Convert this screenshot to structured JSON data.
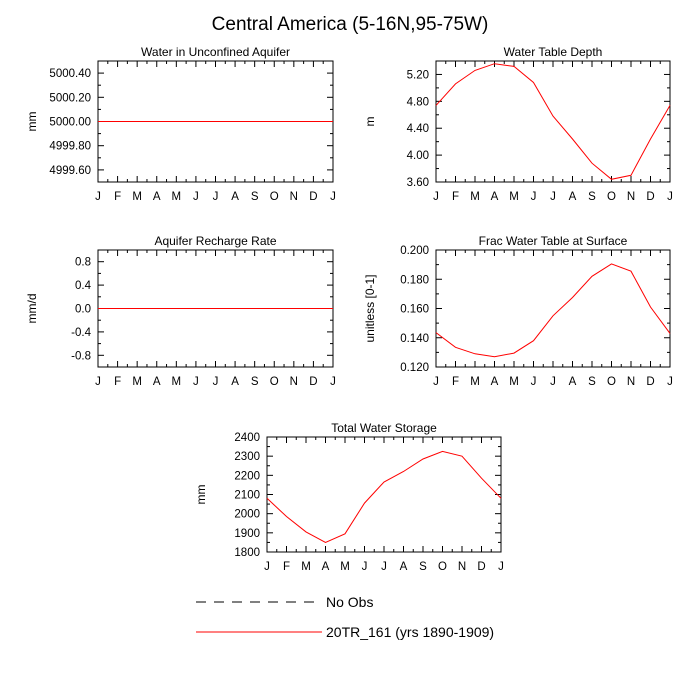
{
  "page_title": "Central America (5-16N,95-75W)",
  "legend": {
    "entries": [
      {
        "label": "No Obs",
        "color": "#000000",
        "style": "dashed"
      },
      {
        "label": "20TR_161 (yrs 1890-1909)",
        "color": "#ff0000",
        "style": "solid"
      }
    ]
  },
  "chart_data": [
    {
      "type": "line",
      "title": "Water in Unconfined Aquifer",
      "ylabel": "mm",
      "xlabel": "",
      "categories": [
        "J",
        "F",
        "M",
        "A",
        "M",
        "J",
        "J",
        "A",
        "S",
        "O",
        "N",
        "D",
        "J"
      ],
      "ylim": [
        4999.5,
        5000.5
      ],
      "yticks": [
        4999.6,
        4999.8,
        5000.0,
        5000.2,
        5000.4
      ],
      "ytick_labels": [
        "4999.60",
        "4999.80",
        "5000.00",
        "5000.20",
        "5000.40"
      ],
      "series": [
        {
          "name": "20TR_161 (yrs 1890-1909)",
          "color": "#ff0000",
          "values": [
            5000,
            5000,
            5000,
            5000,
            5000,
            5000,
            5000,
            5000,
            5000,
            5000,
            5000,
            5000,
            5000
          ]
        }
      ]
    },
    {
      "type": "line",
      "title": "Water Table Depth",
      "ylabel": "m",
      "xlabel": "",
      "categories": [
        "J",
        "F",
        "M",
        "A",
        "M",
        "J",
        "J",
        "A",
        "S",
        "O",
        "N",
        "D",
        "J"
      ],
      "ylim": [
        3.6,
        5.4
      ],
      "yticks": [
        3.6,
        4.0,
        4.4,
        4.8,
        5.2
      ],
      "ytick_labels": [
        "3.60",
        "4.00",
        "4.40",
        "4.80",
        "5.20"
      ],
      "series": [
        {
          "name": "20TR_161 (yrs 1890-1909)",
          "color": "#ff0000",
          "values": [
            4.74,
            5.06,
            5.26,
            5.36,
            5.32,
            5.08,
            4.58,
            4.24,
            3.88,
            3.64,
            3.7,
            4.24,
            4.74
          ]
        }
      ]
    },
    {
      "type": "line",
      "title": "Aquifer Recharge Rate",
      "ylabel": "mm/d",
      "xlabel": "",
      "categories": [
        "J",
        "F",
        "M",
        "A",
        "M",
        "J",
        "J",
        "A",
        "S",
        "O",
        "N",
        "D",
        "J"
      ],
      "ylim": [
        -1.0,
        1.0
      ],
      "yticks": [
        -0.8,
        -0.4,
        0.0,
        0.4,
        0.8
      ],
      "ytick_labels": [
        "-0.8",
        "-0.4",
        "0.0",
        "0.4",
        "0.8"
      ],
      "series": [
        {
          "name": "20TR_161 (yrs 1890-1909)",
          "color": "#ff0000",
          "values": [
            0,
            0,
            0,
            0,
            0,
            0,
            0,
            0,
            0,
            0,
            0,
            0,
            0
          ]
        }
      ]
    },
    {
      "type": "line",
      "title": "Frac Water Table at Surface",
      "ylabel": "unitless [0-1]",
      "xlabel": "",
      "categories": [
        "J",
        "F",
        "M",
        "A",
        "M",
        "J",
        "J",
        "A",
        "S",
        "O",
        "N",
        "D",
        "J"
      ],
      "ylim": [
        0.12,
        0.2
      ],
      "yticks": [
        0.12,
        0.14,
        0.16,
        0.18,
        0.2
      ],
      "ytick_labels": [
        "0.120",
        "0.140",
        "0.160",
        "0.180",
        "0.200"
      ],
      "series": [
        {
          "name": "20TR_161 (yrs 1890-1909)",
          "color": "#ff0000",
          "values": [
            0.1435,
            0.1335,
            0.129,
            0.127,
            0.1295,
            0.138,
            0.155,
            0.1675,
            0.182,
            0.1905,
            0.1855,
            0.161,
            0.143
          ]
        }
      ]
    },
    {
      "type": "line",
      "title": "Total Water Storage",
      "ylabel": "mm",
      "xlabel": "",
      "categories": [
        "J",
        "F",
        "M",
        "A",
        "M",
        "J",
        "J",
        "A",
        "S",
        "O",
        "N",
        "D",
        "J"
      ],
      "ylim": [
        1800,
        2400
      ],
      "yticks": [
        1800,
        1900,
        2000,
        2100,
        2200,
        2300,
        2400
      ],
      "ytick_labels": [
        "1800",
        "1900",
        "2000",
        "2100",
        "2200",
        "2300",
        "2400"
      ],
      "series": [
        {
          "name": "20TR_161 (yrs 1890-1909)",
          "color": "#ff0000",
          "values": [
            2080,
            1985,
            1905,
            1850,
            1895,
            2055,
            2165,
            2220,
            2285,
            2325,
            2300,
            2185,
            2080
          ]
        }
      ]
    }
  ]
}
